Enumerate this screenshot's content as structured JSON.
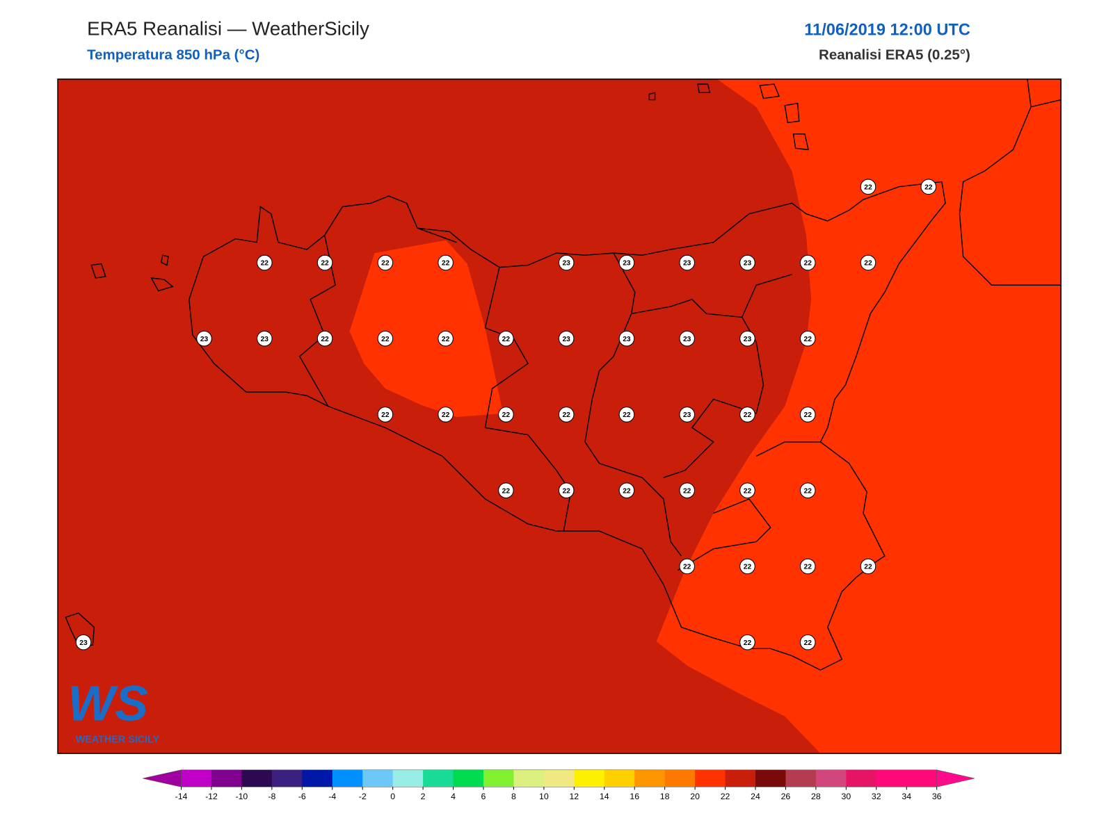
{
  "header": {
    "title": "ERA5 Reanalisi — WeatherSicily",
    "subtitle": "Temperatura 850 hPa (°C)",
    "datetime": "11/06/2019 12:00 UTC",
    "source": "Reanalisi ERA5 (0.25°)"
  },
  "stations": [
    [
      null,
      null,
      null,
      null,
      null,
      null,
      null,
      null,
      null,
      null,
      null,
      null,
      null,
      22,
      22
    ],
    [
      null,
      null,
      null,
      22,
      22,
      22,
      22,
      null,
      23,
      23,
      23,
      23,
      22,
      22,
      null
    ],
    [
      null,
      null,
      23,
      23,
      22,
      22,
      22,
      22,
      23,
      23,
      23,
      23,
      22,
      null,
      null
    ],
    [
      null,
      null,
      null,
      null,
      null,
      22,
      22,
      22,
      22,
      22,
      23,
      22,
      22,
      null,
      null
    ],
    [
      null,
      null,
      null,
      null,
      null,
      null,
      null,
      22,
      22,
      22,
      22,
      22,
      22,
      null,
      null
    ],
    [
      null,
      null,
      null,
      null,
      null,
      null,
      null,
      null,
      null,
      null,
      22,
      22,
      22,
      22,
      null
    ],
    [
      23,
      null,
      null,
      null,
      null,
      null,
      null,
      null,
      null,
      null,
      null,
      22,
      22,
      null,
      null
    ]
  ],
  "colorbar": {
    "ticks": [
      -14,
      -12,
      -10,
      -8,
      -6,
      -4,
      -2,
      0,
      2,
      4,
      6,
      8,
      10,
      12,
      14,
      16,
      18,
      20,
      22,
      24,
      26,
      28,
      30,
      32,
      34,
      36
    ],
    "under_color": "#a0009f",
    "colors": [
      "#c000c8",
      "#800090",
      "#2d0a50",
      "#3c2080",
      "#0018a8",
      "#0090ff",
      "#6cc8f5",
      "#98ece6",
      "#18dc96",
      "#00dc50",
      "#80f030",
      "#dcf080",
      "#f0e880",
      "#fff000",
      "#ffd000",
      "#ff9600",
      "#ff7800",
      "#ff3200",
      "#c81e0a",
      "#780a0a",
      "#b43c50",
      "#d2467d",
      "#e61464",
      "#ff0a78",
      "#ff0a78"
    ],
    "over_color": "#ff0a8c"
  },
  "logo": {
    "mark": "WS",
    "name": "WEATHER SICILY"
  }
}
